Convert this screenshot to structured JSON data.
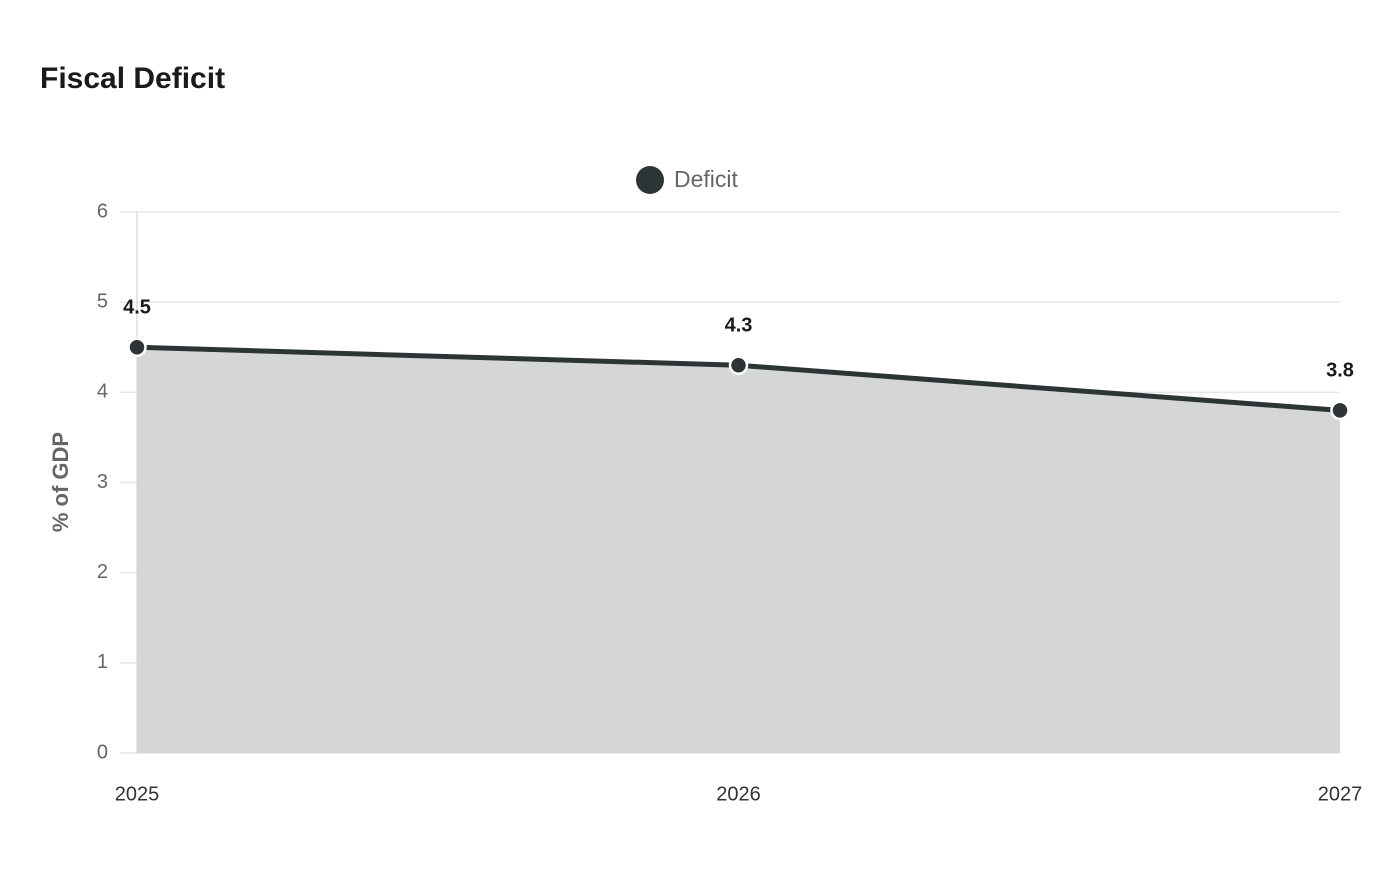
{
  "chart_data": {
    "type": "area",
    "title": "Fiscal Deficit",
    "y_label": "% of GDP",
    "categories": [
      "2025",
      "2026",
      "2027"
    ],
    "series": [
      {
        "name": "Deficit",
        "color": "#2d3436",
        "values": [
          4.5,
          4.3,
          3.8
        ]
      }
    ],
    "ylim": [
      0,
      6
    ],
    "yticks": [
      0,
      1,
      2,
      3,
      4,
      5,
      6
    ],
    "grid": true,
    "legend": "top"
  }
}
